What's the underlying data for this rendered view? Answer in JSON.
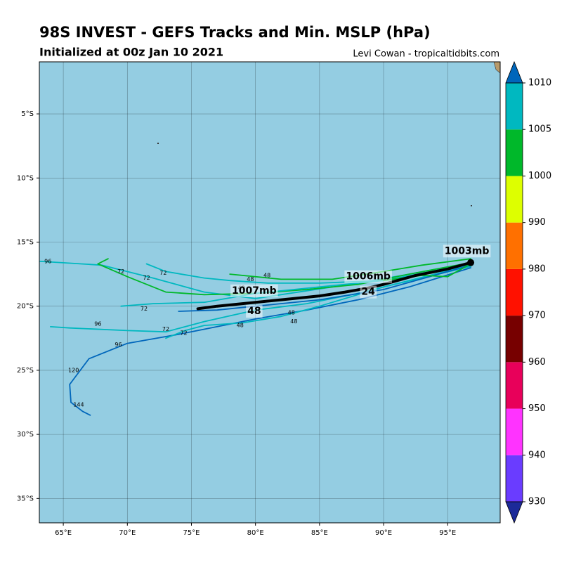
{
  "chart_data": {
    "type": "track-map",
    "title": "98S INVEST - GEFS Tracks and Min. MSLP (hPa)",
    "subtitle": "Initialized at 00z Jan 10 2021",
    "credit": "Levi Cowan - tropicaltidbits.com",
    "xlim": [
      63.13,
      99.1
    ],
    "ylim": [
      -36.9,
      -0.94
    ],
    "xticks": [
      {
        "value": 65,
        "label": "65°E"
      },
      {
        "value": 70,
        "label": "70°E"
      },
      {
        "value": 75,
        "label": "75°E"
      },
      {
        "value": 80,
        "label": "80°E"
      },
      {
        "value": 85,
        "label": "85°E"
      },
      {
        "value": 90,
        "label": "90°E"
      },
      {
        "value": 95,
        "label": "95°E"
      }
    ],
    "yticks": [
      {
        "value": -5,
        "label": "5°S"
      },
      {
        "value": -10,
        "label": "10°S"
      },
      {
        "value": -15,
        "label": "15°S"
      },
      {
        "value": -20,
        "label": "20°S"
      },
      {
        "value": -25,
        "label": "25°S"
      },
      {
        "value": -30,
        "label": "30°S"
      },
      {
        "value": -35,
        "label": "35°S"
      }
    ],
    "grid": true,
    "background": "#94cde2",
    "colorbar": {
      "ticks": [
        930,
        940,
        950,
        960,
        970,
        980,
        990,
        1000,
        1005,
        1010
      ],
      "colors": [
        "#6a3cff",
        "#ff33ff",
        "#e8005a",
        "#770000",
        "#ff1100",
        "#ff7000",
        "#ddff00",
        "#00b82a",
        "#00b8c0"
      ],
      "extend_colors": [
        "#1c2a99",
        "#0066bb"
      ]
    },
    "mean_track": {
      "color": "#000000",
      "lon": [
        96.8,
        95,
        92.5,
        90,
        88.7,
        87,
        85,
        82,
        80,
        77,
        75.5
      ],
      "lat": [
        -16.6,
        -17.1,
        -17.6,
        -18.3,
        -18.6,
        -18.9,
        -19.2,
        -19.5,
        -19.7,
        -20.0,
        -20.2
      ]
    },
    "tracks": [
      {
        "color": "#00b8c0",
        "lon": [
          96.8,
          92,
          88,
          84,
          80,
          76,
          72,
          68,
          63.2
        ],
        "lat": [
          -16.6,
          -17.5,
          -18.2,
          -18.8,
          -19.4,
          -18.9,
          -17.8,
          -16.8,
          -16.5
        ]
      },
      {
        "color": "#00b82a",
        "lon": [
          96.8,
          92,
          88,
          84,
          80,
          76,
          73,
          70,
          67.7,
          68.5
        ],
        "lat": [
          -16.6,
          -17.5,
          -18.3,
          -18.7,
          -19.0,
          -19.1,
          -18.9,
          -17.7,
          -16.7,
          -16.3
        ]
      },
      {
        "color": "#00b8c0",
        "lon": [
          96.8,
          92,
          88,
          84,
          80,
          76,
          73,
          70,
          65.5,
          64
        ],
        "lat": [
          -16.8,
          -18,
          -19,
          -19.8,
          -20.3,
          -21.2,
          -22.0,
          -21.9,
          -21.7,
          -21.6
        ]
      },
      {
        "color": "#0066bb",
        "lon": [
          96.8,
          92,
          88,
          84,
          80,
          76,
          74,
          70,
          67,
          65.5,
          65.6,
          66.5,
          67.1
        ],
        "lat": [
          -17,
          -18.5,
          -19.5,
          -20.3,
          -21,
          -21.8,
          -22.2,
          -22.9,
          -24.1,
          -26.1,
          -27.5,
          -28.2,
          -28.5
        ]
      },
      {
        "color": "#00b8c0",
        "lon": [
          96.8,
          90,
          85,
          80,
          76,
          72,
          69.5
        ],
        "lat": [
          -16.7,
          -18.0,
          -18.5,
          -19.0,
          -19.7,
          -19.8,
          -20.0
        ]
      },
      {
        "color": "#00b82a",
        "lon": [
          96.8,
          93,
          90,
          86,
          82,
          78
        ],
        "lat": [
          -16.3,
          -16.8,
          -17.3,
          -17.9,
          -17.9,
          -17.5
        ]
      },
      {
        "color": "#00b8c0",
        "lon": [
          96.8,
          90,
          85,
          81,
          78,
          76,
          73,
          71.5
        ],
        "lat": [
          -16.8,
          -18,
          -18.2,
          -18.2,
          -18.0,
          -17.8,
          -17.3,
          -16.7
        ]
      },
      {
        "color": "#00b8c0",
        "lon": [
          96.8,
          90,
          85,
          82,
          79,
          76,
          74.5,
          73
        ],
        "lat": [
          -16.9,
          -18.5,
          -20.0,
          -20.8,
          -21.3,
          -21.5,
          -21.9,
          -22.5
        ]
      },
      {
        "color": "#0066bb",
        "lon": [
          96.8,
          90,
          85,
          80,
          77,
          74
        ],
        "lat": [
          -16.8,
          -18.7,
          -19.5,
          -20.0,
          -20.3,
          -20.4
        ]
      },
      {
        "color": "#00b82a",
        "lon": [
          96.8,
          95,
          93,
          90
        ],
        "lat": [
          -16.7,
          -17.7,
          -17.6,
          -18.0
        ]
      }
    ],
    "big_labels": [
      {
        "text": "1003mb",
        "lon": 96.5,
        "lat": -15.7
      },
      {
        "text": "1006mb",
        "lon": 88.8,
        "lat": -17.7
      },
      {
        "text": "1007mb",
        "lon": 79.9,
        "lat": -18.8
      },
      {
        "text": "24",
        "lon": 88.8,
        "lat": -18.9
      },
      {
        "text": "48",
        "lon": 79.9,
        "lat": -20.4
      }
    ],
    "hour_labels": [
      {
        "text": "96",
        "lon": 63.8,
        "lat": -16.5
      },
      {
        "text": "72",
        "lon": 69.5,
        "lat": -17.3
      },
      {
        "text": "72",
        "lon": 71.5,
        "lat": -17.8
      },
      {
        "text": "72",
        "lon": 72.8,
        "lat": -17.4
      },
      {
        "text": "72",
        "lon": 71.3,
        "lat": -20.2
      },
      {
        "text": "72",
        "lon": 73,
        "lat": -21.8
      },
      {
        "text": "72",
        "lon": 74.4,
        "lat": -22.1
      },
      {
        "text": "96",
        "lon": 67.7,
        "lat": -21.4
      },
      {
        "text": "96",
        "lon": 69.3,
        "lat": -23.0
      },
      {
        "text": "120",
        "lon": 65.8,
        "lat": -25.0
      },
      {
        "text": "144",
        "lon": 66.2,
        "lat": -27.7
      },
      {
        "text": "48",
        "lon": 78.9,
        "lat": -18.6
      },
      {
        "text": "48",
        "lon": 80.9,
        "lat": -17.6
      },
      {
        "text": "48",
        "lon": 79.6,
        "lat": -17.9
      },
      {
        "text": "48",
        "lon": 78.8,
        "lat": -21.5
      },
      {
        "text": "48",
        "lon": 83,
        "lat": -21.2
      },
      {
        "text": "48",
        "lon": 82.8,
        "lat": -20.5
      }
    ]
  }
}
